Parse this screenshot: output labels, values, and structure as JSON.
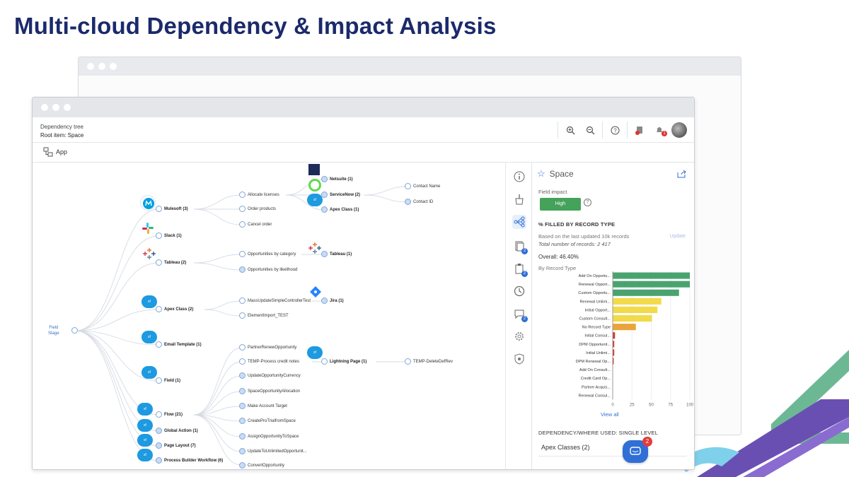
{
  "slide": {
    "title": "Multi-cloud Dependency & Impact Analysis"
  },
  "app": {
    "header_title": "Dependency tree",
    "header_subtitle": "Root item: Space",
    "app_button_label": "App",
    "tools": [
      "zoom-in-icon",
      "zoom-out-icon",
      "help-icon",
      "alert-icon",
      "notification-icon"
    ],
    "notification_count": "1"
  },
  "tree": {
    "root_line1": "Field",
    "root_line2": "Stage",
    "level1": [
      {
        "label": "Mulesoft (3)",
        "logo": "mulesoft"
      },
      {
        "label": "Slack (1)",
        "logo": "slack"
      },
      {
        "label": "Tableau (2)",
        "logo": "tableau"
      },
      {
        "label": "Apex Class (2)",
        "logo": "salesforce"
      },
      {
        "label": "Email Template (1)",
        "logo": "salesforce"
      },
      {
        "label": "Field (1)",
        "logo": "salesforce"
      },
      {
        "label": "Flow (21)",
        "logo": "salesforce"
      },
      {
        "label": "Global Action (1)",
        "logo": "salesforce"
      },
      {
        "label": "Page Layout (7)",
        "logo": "salesforce"
      },
      {
        "label": "Process Builder Workflow (6)",
        "logo": "salesforce"
      }
    ],
    "level2": [
      "Allocate licenses",
      "Order products",
      "Cancel order",
      "Opportunities by category",
      "Opportunities by likelihood",
      "MassUpdateSimpleControllerTest",
      "ElementImport_TEST",
      "PartnerRenewOpportunity",
      "TEMP-Process credit notes",
      "UpdateOpportunityCurrency",
      "SpaceOpportunityAllocation",
      "Make Account Target",
      "CreateProTrialfromSpace",
      "AssignOpportunityToSpace",
      "UpdateToUnlimitedOpportunit...",
      "ConvertOpportunity"
    ],
    "level3": [
      "Netsuite (1)",
      "ServiceNow (2)",
      "Apex Class (1)",
      "Tableau (1)",
      "Jira (1)",
      "Lightning Page (1)"
    ],
    "level4": [
      "Contact Name",
      "Contact ID",
      "TEMP-DeleteDefRev"
    ]
  },
  "panel": {
    "item_name": "Space",
    "field_impact_label": "Field impact",
    "impact_value": "High",
    "filled_heading": "% FILLED BY RECORD TYPE",
    "based_on": "Based on the last updated 10k records",
    "update_label": "Update",
    "total_records": "Total number of records: 2 417",
    "overall": "Overall: 46.40%",
    "by_record_type": "By Record Type",
    "view_all": "View all",
    "dependency_heading": "DEPENDENCY/WHERE USED: SINGLE LEVEL",
    "dependency_item": "Apex Classes (2)",
    "rail_badges": [
      "2",
      "2",
      "2"
    ]
  },
  "chat": {
    "badge": "2"
  },
  "colors": {
    "title": "#1b2a6b",
    "accent": "#2f6fd6",
    "high": "#44a25a",
    "bar_green": "#4aa36f",
    "bar_yellow": "#f2da4a",
    "bar_orange": "#eaa43a",
    "bar_red": "#d9342b"
  },
  "chart_data": {
    "type": "bar",
    "orientation": "horizontal",
    "categories": [
      "Add On Opportu...",
      "Renewal Opport...",
      "Custom Opportu...",
      "Renewal Unlimi...",
      "Initial Opport...",
      "Custom Consult...",
      "No Record Type",
      "Initial Consul...",
      "DPM Opportunit...",
      "Initial Unlimi...",
      "DPM Renewal Op...",
      "Add On Consult...",
      "Credit Card Op...",
      "Partner Acquis...",
      "Renewal Consul..."
    ],
    "values": [
      100,
      100,
      86,
      63,
      58,
      51,
      30,
      3,
      2,
      2,
      1,
      0,
      0,
      0,
      0
    ],
    "xlim": [
      0,
      100
    ],
    "xticks": [
      "0",
      "25",
      "50",
      "75",
      "100"
    ],
    "title": "",
    "xlabel": "",
    "ylabel": ""
  }
}
